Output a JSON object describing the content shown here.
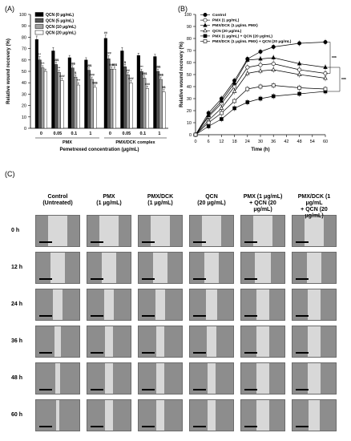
{
  "panels": {
    "a_label": "(A)",
    "b_label": "(B)",
    "c_label": "(C)"
  },
  "chart_data": [
    {
      "type": "bar",
      "ylabel": "Relative wound recovery (%)",
      "xlabel": "Pemetrexed concentration (μg/mL)",
      "ylim": [
        0,
        100
      ],
      "yticks": [
        "0",
        "10",
        "20",
        "30",
        "40",
        "50",
        "60",
        "70",
        "80",
        "90",
        "100"
      ],
      "groups": [
        {
          "name": "PMX",
          "categories": [
            "0",
            "0.05",
            "0.1",
            "1"
          ]
        },
        {
          "name": "PMX/DCK complex",
          "categories": [
            "0",
            "0.05",
            "0.1",
            "1"
          ]
        }
      ],
      "series": [
        {
          "name": "QCN (0 μg/mL)",
          "color": "#000000",
          "values": [
            78,
            68,
            62,
            60,
            79,
            68,
            64,
            63
          ]
        },
        {
          "name": "QCN (5 μg/mL)",
          "color": "#555555",
          "values": [
            60,
            56,
            53,
            51,
            61,
            54,
            50,
            50
          ]
        },
        {
          "name": "QCN (10 μg/mL)",
          "color": "#a0a0a0",
          "values": [
            53,
            49,
            45,
            43,
            52,
            47,
            44,
            43
          ]
        },
        {
          "name": "QCN (20 μg/mL)",
          "color": "#ffffff",
          "values": [
            50,
            42,
            38,
            36,
            52,
            40,
            35,
            32
          ]
        }
      ],
      "errors": [
        [
          3,
          3,
          2,
          2,
          3,
          3,
          2,
          2
        ],
        [
          3,
          2,
          2,
          2,
          3,
          2,
          2,
          2
        ],
        [
          2,
          2,
          2,
          2,
          2,
          2,
          2,
          2
        ],
        [
          2,
          2,
          2,
          2,
          2,
          2,
          2,
          2
        ]
      ],
      "annotations": [
        [
          "",
          "",
          "",
          "",
          "##",
          "",
          "",
          ""
        ],
        [
          "**",
          "$$$",
          "$$$",
          "$$$",
          "###",
          "$",
          "***",
          "$$$"
        ],
        [
          "***",
          "**",
          "$",
          "###",
          "###",
          "##",
          "$$$",
          "$$$"
        ],
        [
          "",
          "###",
          "***",
          "$$$",
          "$$$",
          "###",
          "###",
          "$$"
        ]
      ]
    },
    {
      "type": "line",
      "xlabel": "Time (h)",
      "ylabel": "Relative wound recovery (%)",
      "xlim": [
        0,
        60
      ],
      "ylim": [
        0,
        100
      ],
      "xticks": [
        "0",
        "6",
        "12",
        "18",
        "24",
        "30",
        "36",
        "42",
        "48",
        "54",
        "60"
      ],
      "yticks": [
        "0",
        "10",
        "20",
        "30",
        "40",
        "50",
        "60",
        "70",
        "80",
        "90",
        "100"
      ],
      "x": [
        0,
        6,
        12,
        18,
        24,
        30,
        36,
        48,
        60
      ],
      "series": [
        {
          "name": "Control",
          "marker": "filled-circle",
          "values": [
            0,
            18,
            30,
            45,
            63,
            69,
            73,
            76,
            77
          ]
        },
        {
          "name": "PMX (1 μg/mL)",
          "marker": "open-circle",
          "values": [
            0,
            15,
            26,
            40,
            56,
            58,
            59,
            54,
            51
          ]
        },
        {
          "name": "PMX/DCK (1 μg/mL PMX)",
          "marker": "filled-triangle",
          "values": [
            0,
            16,
            28,
            43,
            62,
            63,
            64,
            59,
            56
          ]
        },
        {
          "name": "QCN (20 μg/mL)",
          "marker": "open-triangle",
          "values": [
            0,
            12,
            22,
            36,
            51,
            53,
            54,
            50,
            47
          ]
        },
        {
          "name": "PMX (1 μg/mL) + QCN (20 μg/mL)",
          "marker": "filled-square",
          "values": [
            0,
            7,
            13,
            22,
            27,
            30,
            32,
            34,
            36
          ]
        },
        {
          "name": "PMX/DCK (1 μg/mL PMX) + QCN (20 μg/mL)",
          "marker": "open-square",
          "values": [
            0,
            10,
            18,
            28,
            38,
            40,
            41,
            39,
            38
          ]
        }
      ],
      "significance": [
        "***",
        "***"
      ]
    }
  ],
  "micrographs": {
    "columns": [
      {
        "line1": "Control",
        "line2": "(Untreated)"
      },
      {
        "line1": "PMX",
        "line2": "(1 μg/mL)"
      },
      {
        "line1": "PMX/DCK",
        "line2": "(1 μg/mL)"
      },
      {
        "line1": "QCN",
        "line2": "(20 μg/mL)"
      },
      {
        "line1": "PMX (1 μg/mL)",
        "line2": "+ QCN (20 μg/mL)"
      },
      {
        "line1": "PMX/DCK (1 μg/mL",
        "line2": "+ QCN (20 μg/mL)"
      }
    ],
    "rows": [
      "0 h",
      "12 h",
      "24 h",
      "36 h",
      "48 h",
      "60 h"
    ],
    "gap_widths": [
      [
        0.44,
        0.44,
        0.46,
        0.44,
        0.44,
        0.44
      ],
      [
        0.34,
        0.34,
        0.32,
        0.34,
        0.36,
        0.34
      ],
      [
        0.22,
        0.24,
        0.22,
        0.26,
        0.3,
        0.28
      ],
      [
        0.14,
        0.2,
        0.2,
        0.22,
        0.3,
        0.28
      ],
      [
        0.1,
        0.2,
        0.18,
        0.2,
        0.28,
        0.28
      ],
      [
        0.08,
        0.18,
        0.18,
        0.18,
        0.28,
        0.27
      ]
    ]
  }
}
